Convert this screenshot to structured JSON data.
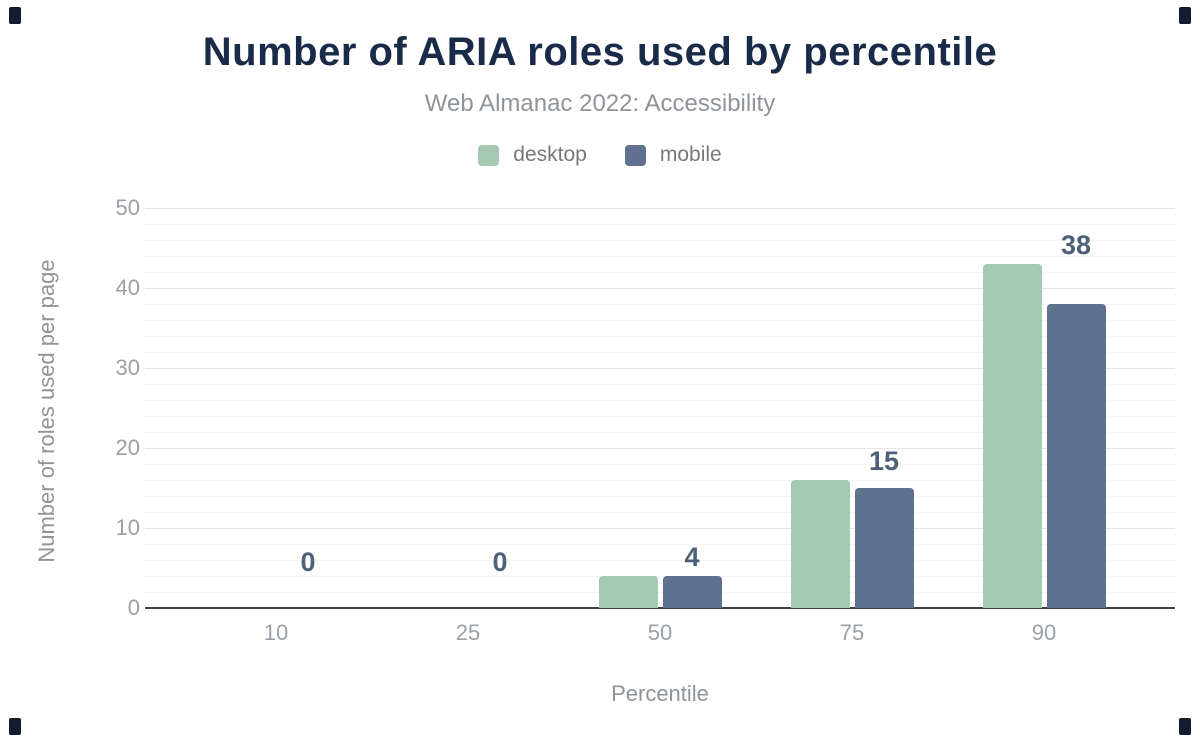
{
  "title": "Number of ARIA roles used by percentile",
  "subtitle": "Web Almanac 2022: Accessibility",
  "chart_data": {
    "type": "bar",
    "categories": [
      "10",
      "25",
      "50",
      "75",
      "90"
    ],
    "series": [
      {
        "name": "desktop",
        "color": "#a5c9b4",
        "values": [
          0,
          0,
          4,
          16,
          43
        ]
      },
      {
        "name": "mobile",
        "color": "#5f718e",
        "values": [
          0,
          0,
          4,
          15,
          38
        ]
      }
    ],
    "data_labels": {
      "series": "mobile",
      "values": [
        0,
        0,
        4,
        15,
        38
      ],
      "color": "#4d6078"
    },
    "title": "Number of ARIA roles used by percentile",
    "subtitle": "Web Almanac 2022: Accessibility",
    "xlabel": "Percentile",
    "ylabel": "Number of roles used per page",
    "ylim": [
      0,
      50
    ],
    "yticks": [
      0,
      10,
      20,
      30,
      40,
      50
    ],
    "grid": "major horizontal with light minor lines",
    "legend_position": "top center"
  },
  "colors": {
    "title": "#1a2b49",
    "subtitle": "#8f9499",
    "axis_text": "#9aa0a6",
    "baseline": "#3d4043",
    "major_grid": "#e4e4e4",
    "minor_grid": "#f5f5f6"
  }
}
